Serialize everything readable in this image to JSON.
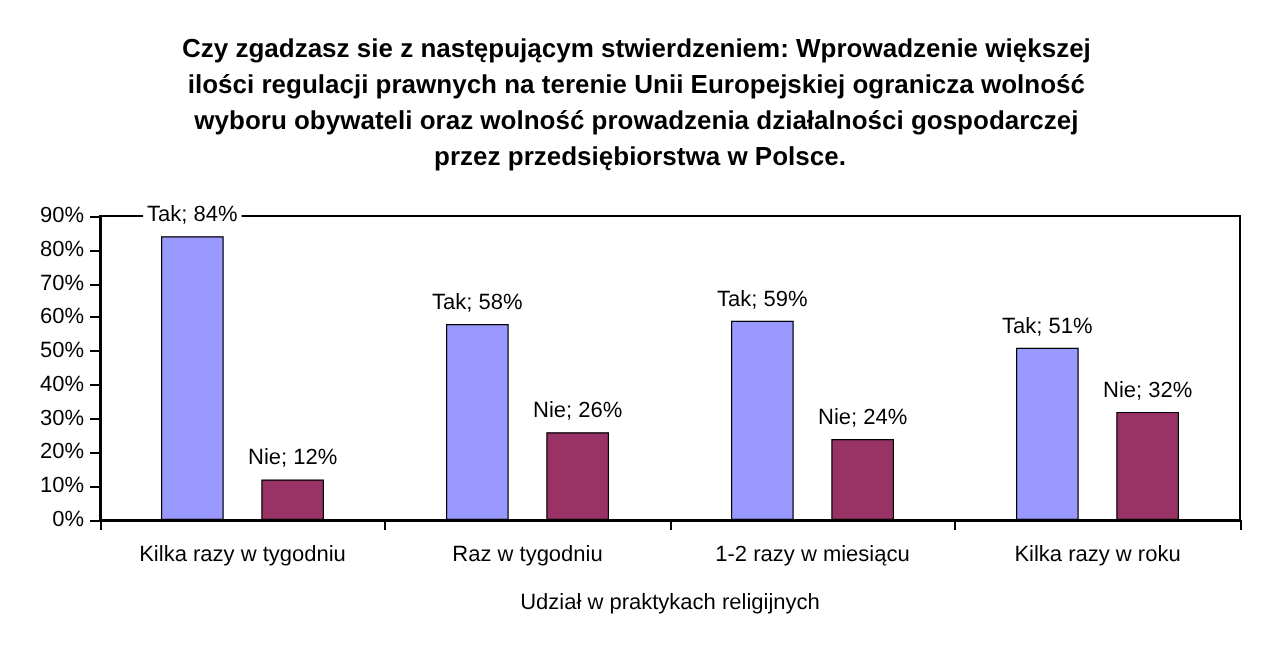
{
  "chart_data": {
    "type": "bar",
    "title": "Czy zgadzasz sie z następującym stwierdzeniem: Wprowadzenie większej ilości regulacji prawnych na terenie Unii Europejskiej ogranicza wolność wyboru obywateli oraz wolność prowadzenia działalności gospodarczej przez przedsiębiorstwa w Polsce.",
    "xlabel": "Udział w praktykach religijnych",
    "categories": [
      "Kilka razy w tygodniu",
      "Raz w tygodniu",
      "1-2 razy w miesiącu",
      "Kilka razy w roku"
    ],
    "series": [
      {
        "color": "#9999ff",
        "values": [
          84,
          58,
          59,
          51
        ],
        "value_labels": [
          "Tak; 84%",
          "Tak; 58%",
          "Tak; 59%",
          "Tak; 51%"
        ]
      },
      {
        "color": "#993366",
        "values": [
          12,
          26,
          24,
          32
        ],
        "value_labels": [
          "Nie; 12%",
          "Nie; 26%",
          "Nie; 24%",
          "Nie; 32%"
        ]
      }
    ],
    "ylim": [
      0,
      90
    ],
    "yticks": [
      {
        "value": 0,
        "label": "0%"
      },
      {
        "value": 10,
        "label": "10%"
      },
      {
        "value": 20,
        "label": "20%"
      },
      {
        "value": 30,
        "label": "30%"
      },
      {
        "value": 40,
        "label": "40%"
      },
      {
        "value": 50,
        "label": "50%"
      },
      {
        "value": 60,
        "label": "60%"
      },
      {
        "value": 70,
        "label": "70%"
      },
      {
        "value": 80,
        "label": "80%"
      },
      {
        "value": 90,
        "label": "90%"
      }
    ],
    "grid": false
  }
}
